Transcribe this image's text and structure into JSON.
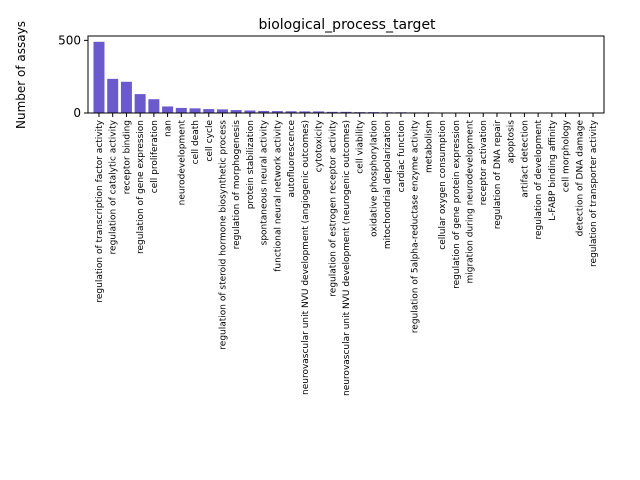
{
  "chart_data": {
    "type": "bar",
    "title": "biological_process_target",
    "xlabel": "",
    "ylabel": "Number of assays",
    "ylim": [
      0,
      530
    ],
    "yticks": [
      0,
      500
    ],
    "grid": false,
    "bar_color": "#6a5acd",
    "categories": [
      "regulation of transcription factor activity",
      "regulation of catalytic activity",
      "receptor binding",
      "regulation of gene expression",
      "cell proliferation",
      "nan",
      "neurodevelopment",
      "cell death",
      "cell cycle",
      "regulation of steroid hormone biosynthetic process",
      "regulation of morphogenesis",
      "protein stabilization",
      "spontaneous neural activity",
      "functional neural network activity",
      "autofluorescence",
      "neurovascular unit NVU development (angiogenic outcomes)",
      "cytotoxicity",
      "regulation of estrogen receptor activity",
      "neurovascular unit NVU development (neurogenic outcomes)",
      "cell viability",
      "oxidative phosphorylation",
      "mitochondrial depolarization",
      "cardiac function",
      "regulation of  5alpha-reductase enzyme activity",
      "metabolism",
      "cellular oxygen consumption",
      "regulation of gene protein expression",
      "migration during neurodevelopment",
      "receptor activation",
      "regulation of DNA repair",
      "apoptosis",
      "artifact detection",
      "regulation of development",
      "L-FABP binding affinity",
      "cell morphology",
      "detection of DNA damage",
      "regulation of transporter activity"
    ],
    "values": [
      490,
      235,
      215,
      130,
      95,
      45,
      35,
      32,
      27,
      25,
      20,
      17,
      14,
      13,
      12,
      11,
      11,
      8,
      8,
      6,
      6,
      5,
      5,
      4,
      4,
      3,
      2,
      2,
      2,
      2,
      2,
      1,
      1,
      1,
      1,
      1,
      1
    ]
  }
}
